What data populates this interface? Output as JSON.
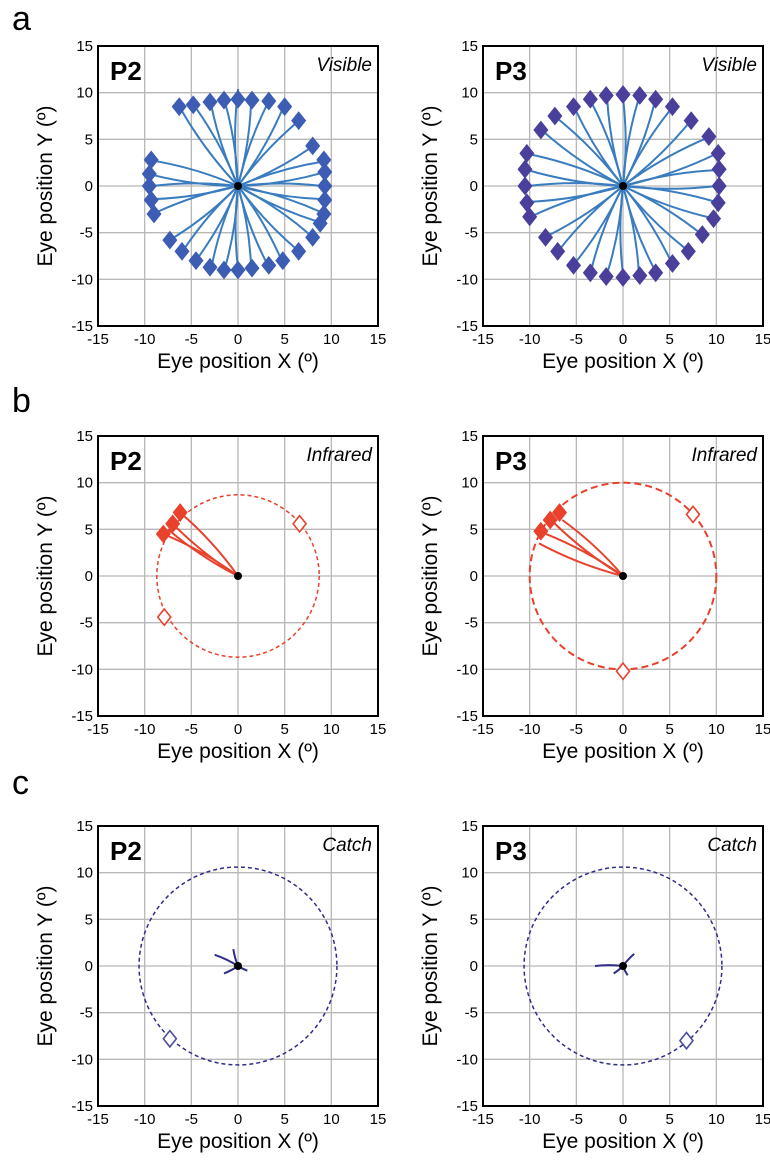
{
  "panel_letters": [
    "a",
    "b",
    "c"
  ],
  "chart_data": [
    {
      "type": "scatter",
      "panel": "a",
      "subject": "P2",
      "condition": "Visible",
      "xlabel": "Eye position X (º)",
      "ylabel": "Eye position Y (º)",
      "xlim": [
        -15,
        15
      ],
      "ylim": [
        -15,
        15
      ],
      "xticks": [
        -15,
        -10,
        -5,
        0,
        5,
        10,
        15
      ],
      "yticks": [
        -15,
        -10,
        -5,
        0,
        5,
        10,
        15
      ],
      "grid": true,
      "trace_color": "#3a7cc0",
      "target_color": "#3d5db4",
      "target_style": "filled",
      "ring_radius": null,
      "ring_style": null,
      "fixation": [
        0,
        0
      ],
      "targets": [
        [
          -9.3,
          2.8
        ],
        [
          -9.5,
          1.3
        ],
        [
          -9.5,
          0
        ],
        [
          -9.3,
          -1.5
        ],
        [
          -9,
          -3
        ],
        [
          -7.3,
          -5.8
        ],
        [
          -6,
          -7
        ],
        [
          -4.5,
          -8
        ],
        [
          -3,
          -8.7
        ],
        [
          -1.5,
          -9
        ],
        [
          0,
          -9
        ],
        [
          1.5,
          -8.8
        ],
        [
          3.3,
          -8.5
        ],
        [
          4.8,
          -8
        ],
        [
          6.5,
          -7
        ],
        [
          8,
          -5.5
        ],
        [
          8.8,
          -4
        ],
        [
          9.2,
          -3
        ],
        [
          9.3,
          -1.5
        ],
        [
          9.3,
          0
        ],
        [
          9.3,
          1.5
        ],
        [
          9.2,
          2.8
        ],
        [
          8,
          4.3
        ],
        [
          6.5,
          7
        ],
        [
          5,
          8.5
        ],
        [
          3.3,
          9.1
        ],
        [
          1.5,
          9.2
        ],
        [
          0,
          9.3
        ],
        [
          -1.5,
          9.2
        ],
        [
          -3,
          9
        ],
        [
          -4.8,
          8.7
        ],
        [
          -6.3,
          8.5
        ]
      ],
      "trace_endpoints": [
        [
          -9,
          2.7
        ],
        [
          -9.2,
          1.2
        ],
        [
          -9.2,
          0
        ],
        [
          -9,
          -1.4
        ],
        [
          -8.7,
          -2.8
        ],
        [
          -7,
          -5.6
        ],
        [
          -5.8,
          -6.8
        ],
        [
          -4.3,
          -7.7
        ],
        [
          -2.8,
          -8.5
        ],
        [
          -1.4,
          -8.8
        ],
        [
          0,
          -8.8
        ],
        [
          1.4,
          -8.6
        ],
        [
          3.1,
          -8.3
        ],
        [
          4.6,
          -7.8
        ],
        [
          6.3,
          -6.8
        ],
        [
          7.8,
          -5.3
        ],
        [
          8.5,
          -3.8
        ],
        [
          8.9,
          -2.8
        ],
        [
          9,
          -1.4
        ],
        [
          9,
          0
        ],
        [
          9,
          1.4
        ],
        [
          9,
          2.6
        ],
        [
          7.8,
          4.1
        ],
        [
          6.3,
          6.8
        ],
        [
          4.8,
          8.3
        ],
        [
          3.2,
          8.9
        ],
        [
          1.4,
          9
        ],
        [
          0,
          10.4
        ],
        [
          -1.4,
          9
        ],
        [
          -2.9,
          8.8
        ],
        [
          -4.6,
          8.5
        ],
        [
          -6.1,
          8.2
        ]
      ],
      "traces_visible": true
    },
    {
      "type": "scatter",
      "panel": "a",
      "subject": "P3",
      "condition": "Visible",
      "xlabel": "Eye position X (º)",
      "ylabel": "Eye position Y (º)",
      "xlim": [
        -15,
        15
      ],
      "ylim": [
        -15,
        15
      ],
      "xticks": [
        -15,
        -10,
        -5,
        0,
        5,
        10,
        15
      ],
      "yticks": [
        -15,
        -10,
        -5,
        0,
        5,
        10,
        15
      ],
      "grid": true,
      "trace_color": "#3a7cc0",
      "target_color": "#4a3f9a",
      "target_style": "filled",
      "ring_radius": null,
      "ring_style": null,
      "fixation": [
        0,
        0
      ],
      "targets": [
        [
          -10.3,
          3.5
        ],
        [
          -10.5,
          1.8
        ],
        [
          -10.5,
          0
        ],
        [
          -10.3,
          -1.8
        ],
        [
          -10,
          -3.3
        ],
        [
          -8.3,
          -5.5
        ],
        [
          -7,
          -7
        ],
        [
          -5.3,
          -8.5
        ],
        [
          -3.5,
          -9.3
        ],
        [
          -1.8,
          -9.7
        ],
        [
          0,
          -9.8
        ],
        [
          1.8,
          -9.6
        ],
        [
          3.5,
          -9.3
        ],
        [
          5.3,
          -8.3
        ],
        [
          7,
          -7
        ],
        [
          8.5,
          -5.2
        ],
        [
          9.7,
          -3.5
        ],
        [
          10.2,
          -1.8
        ],
        [
          10.3,
          0
        ],
        [
          10.3,
          1.8
        ],
        [
          10.2,
          3.5
        ],
        [
          9.2,
          5.3
        ],
        [
          7.3,
          7
        ],
        [
          5.3,
          8.5
        ],
        [
          3.5,
          9.3
        ],
        [
          1.8,
          9.7
        ],
        [
          0,
          9.8
        ],
        [
          -1.8,
          9.7
        ],
        [
          -3.5,
          9.3
        ],
        [
          -5.3,
          8.5
        ],
        [
          -7.3,
          7.5
        ],
        [
          -8.8,
          6
        ]
      ],
      "trace_endpoints": [
        [
          -10,
          3.4
        ],
        [
          -10.2,
          1.7
        ],
        [
          -10.2,
          0
        ],
        [
          -10,
          -1.7
        ],
        [
          -9.7,
          -3.2
        ],
        [
          -8,
          -5.3
        ],
        [
          -6.8,
          -6.8
        ],
        [
          -5.1,
          -8.2
        ],
        [
          -3.4,
          -9
        ],
        [
          -1.7,
          -9.4
        ],
        [
          0,
          -9.5
        ],
        [
          1.7,
          -9.3
        ],
        [
          3.4,
          -9
        ],
        [
          5.1,
          -8
        ],
        [
          6.8,
          -6.8
        ],
        [
          8.2,
          -5
        ],
        [
          9.4,
          -3.4
        ],
        [
          9.9,
          -1.7
        ],
        [
          10,
          0
        ],
        [
          10,
          1.7
        ],
        [
          9.9,
          3.4
        ],
        [
          8.9,
          5.1
        ],
        [
          7.1,
          6.8
        ],
        [
          5.1,
          8.2
        ],
        [
          3.4,
          9
        ],
        [
          1.7,
          9.4
        ],
        [
          0,
          9.5
        ],
        [
          -1.7,
          9.4
        ],
        [
          -3.4,
          9
        ],
        [
          -5.1,
          8.2
        ],
        [
          -7.1,
          7.3
        ],
        [
          -8.5,
          5.8
        ]
      ],
      "traces_visible": true
    },
    {
      "type": "scatter",
      "panel": "b",
      "subject": "P2",
      "condition": "Infrared",
      "xlabel": "Eye position X (º)",
      "ylabel": "Eye position Y (º)",
      "xlim": [
        -15,
        15
      ],
      "ylim": [
        -15,
        15
      ],
      "xticks": [
        -15,
        -10,
        -5,
        0,
        5,
        10,
        15
      ],
      "yticks": [
        -15,
        -10,
        -5,
        0,
        5,
        10,
        15
      ],
      "grid": true,
      "trace_color": "#e8412c",
      "target_color": "#e8412c",
      "target_style": "mixed",
      "ring_radius": 8.7,
      "ring_style": "dotted",
      "fixation": [
        0,
        0
      ],
      "targets": [
        [
          -6.2,
          6.8
        ],
        [
          -7,
          5.6
        ],
        [
          -8,
          4.5
        ],
        [
          6.6,
          5.6
        ],
        [
          -7.9,
          -4.4
        ]
      ],
      "targets_filled": [
        true,
        true,
        true,
        false,
        false
      ],
      "trace_endpoints": [
        [
          -6.2,
          6.8
        ],
        [
          -7,
          5.6
        ],
        [
          -8,
          4.5
        ],
        [
          -7.5,
          5
        ]
      ],
      "traces_visible": true
    },
    {
      "type": "scatter",
      "panel": "b",
      "subject": "P3",
      "condition": "Infrared",
      "xlabel": "Eye position X (º)",
      "ylabel": "Eye position Y (º)",
      "xlim": [
        -15,
        15
      ],
      "ylim": [
        -15,
        15
      ],
      "xticks": [
        -15,
        -10,
        -5,
        0,
        5,
        10,
        15
      ],
      "yticks": [
        -15,
        -10,
        -5,
        0,
        5,
        10,
        15
      ],
      "grid": true,
      "trace_color": "#e8412c",
      "target_color": "#e8412c",
      "target_style": "mixed",
      "ring_radius": 10,
      "ring_style": "dashed",
      "fixation": [
        0,
        0
      ],
      "targets": [
        [
          -6.8,
          6.8
        ],
        [
          -7.8,
          6
        ],
        [
          -8.8,
          4.8
        ],
        [
          7.5,
          6.6
        ],
        [
          0,
          -10.2
        ]
      ],
      "targets_filled": [
        true,
        true,
        true,
        false,
        false
      ],
      "trace_endpoints": [
        [
          -6.5,
          6
        ],
        [
          -7.5,
          5.8
        ],
        [
          -8.5,
          4.6
        ],
        [
          -9,
          3.5
        ]
      ],
      "traces_visible": true
    },
    {
      "type": "scatter",
      "panel": "c",
      "subject": "P2",
      "condition": "Catch",
      "xlabel": "Eye position X (º)",
      "ylabel": "Eye position Y (º)",
      "xlim": [
        -15,
        15
      ],
      "ylim": [
        -15,
        15
      ],
      "xticks": [
        -15,
        -10,
        -5,
        0,
        5,
        10,
        15
      ],
      "yticks": [
        -15,
        -10,
        -5,
        0,
        5,
        10,
        15
      ],
      "grid": true,
      "trace_color": "#2f2d8a",
      "target_color": "#4a4f9a",
      "target_style": "open",
      "ring_radius": 10.6,
      "ring_style": "dotted",
      "fixation": [
        0,
        0
      ],
      "targets": [
        [
          -7.3,
          -7.8
        ]
      ],
      "targets_filled": [
        false
      ],
      "trace_endpoints": [
        [
          -2.5,
          1.2
        ],
        [
          -1.5,
          -0.8
        ],
        [
          1,
          -0.5
        ],
        [
          -0.5,
          1.8
        ]
      ],
      "traces_visible": true
    },
    {
      "type": "scatter",
      "panel": "c",
      "subject": "P3",
      "condition": "Catch",
      "xlabel": "Eye position X (º)",
      "ylabel": "Eye position Y (º)",
      "xlim": [
        -15,
        15
      ],
      "ylim": [
        -15,
        15
      ],
      "xticks": [
        -15,
        -10,
        -5,
        0,
        5,
        10,
        15
      ],
      "yticks": [
        -15,
        -10,
        -5,
        0,
        5,
        10,
        15
      ],
      "grid": true,
      "trace_color": "#2f2d8a",
      "target_color": "#4a4f9a",
      "target_style": "open",
      "ring_radius": 10.6,
      "ring_style": "dotted",
      "fixation": [
        0,
        0
      ],
      "targets": [
        [
          6.8,
          -8
        ]
      ],
      "targets_filled": [
        false
      ],
      "trace_endpoints": [
        [
          -3,
          0
        ],
        [
          1.2,
          1.3
        ],
        [
          0.5,
          -1
        ],
        [
          -1,
          -0.8
        ]
      ],
      "traces_visible": true
    }
  ]
}
